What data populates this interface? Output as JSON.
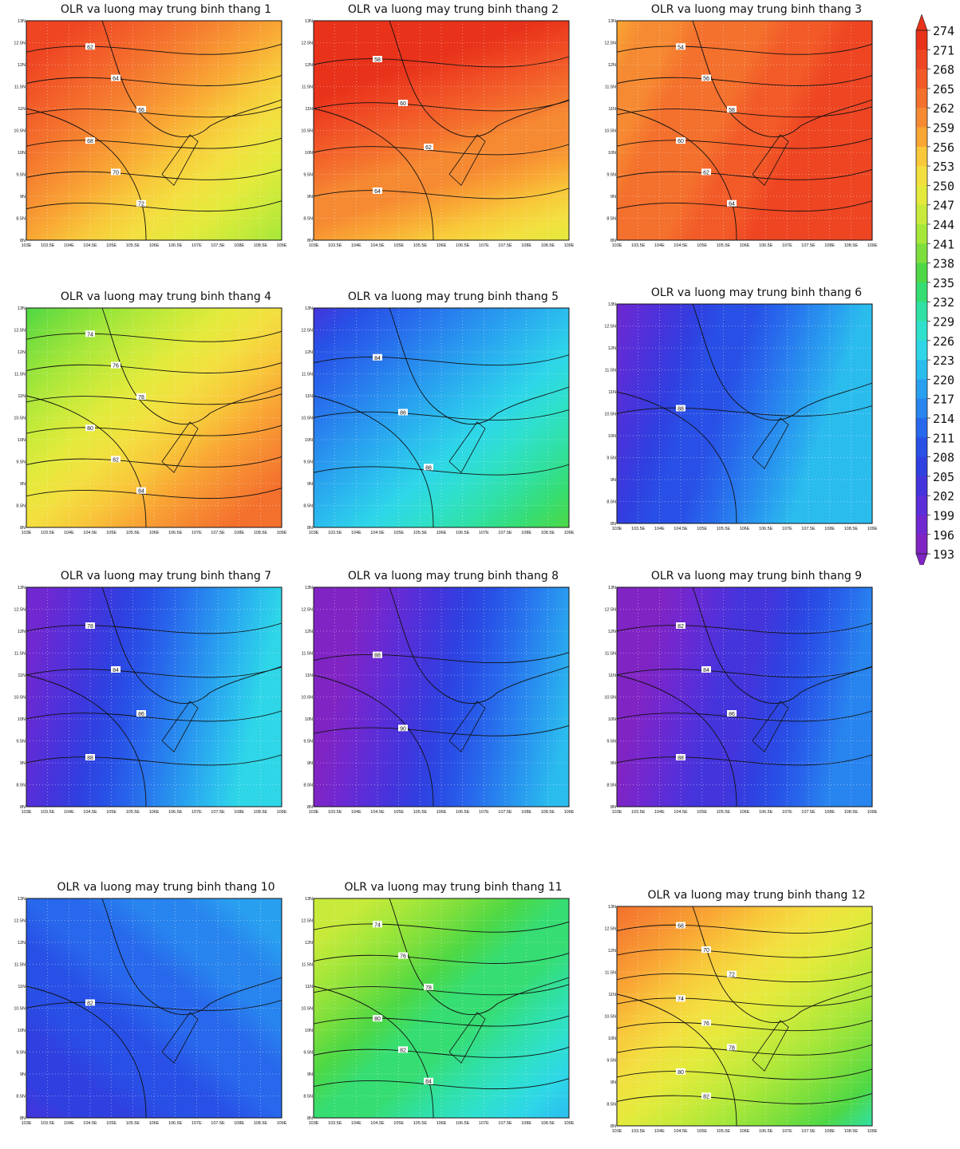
{
  "figure": {
    "colorbar": {
      "ticks": [
        274,
        271,
        268,
        265,
        262,
        259,
        256,
        253,
        250,
        247,
        244,
        241,
        238,
        235,
        232,
        229,
        226,
        223,
        220,
        217,
        214,
        211,
        208,
        205,
        202,
        199,
        196,
        193
      ],
      "colors": [
        "#e8321a",
        "#ee4522",
        "#f25a28",
        "#f4702d",
        "#f68a32",
        "#f9a634",
        "#f8c83a",
        "#f3df40",
        "#e4ea3c",
        "#c8ea3a",
        "#a6e73a",
        "#7edf3c",
        "#4ed845",
        "#36dd72",
        "#30e0a4",
        "#2fe0cc",
        "#2ed6e8",
        "#2bbcee",
        "#29a0ef",
        "#2884ee",
        "#2868ec",
        "#2850e6",
        "#3040e0",
        "#4434dc",
        "#5a2ed8",
        "#7028d0",
        "#8024c4"
      ]
    },
    "axes": {
      "x_ticks": [
        "103E",
        "103.5E",
        "104E",
        "104.5E",
        "105E",
        "105.5E",
        "106E",
        "106.5E",
        "107E",
        "107.5E",
        "108E",
        "108.5E",
        "109E"
      ],
      "y_ticks": [
        "8N",
        "8.5N",
        "9N",
        "9.5N",
        "10N",
        "10.5N",
        "11N",
        "11.5N",
        "12N",
        "12.5N",
        "13N"
      ]
    }
  },
  "chart_data": [
    {
      "type": "heatmap",
      "title": "OLR va luong may trung binh thang 1",
      "olr_range": [
        244,
        271
      ],
      "contour_labels": [
        "62",
        "64",
        "66",
        "68",
        "70",
        "72"
      ]
    },
    {
      "type": "heatmap",
      "title": "OLR va luong may trung binh thang 2",
      "olr_range": [
        250,
        274
      ],
      "contour_labels": [
        "58",
        "60",
        "62",
        "64"
      ]
    },
    {
      "type": "heatmap",
      "title": "OLR va luong may trung binh thang 3",
      "olr_range": [
        259,
        271
      ],
      "contour_labels": [
        "54",
        "56",
        "58",
        "60",
        "62",
        "64"
      ]
    },
    {
      "type": "heatmap",
      "title": "OLR va luong may trung binh thang 4",
      "olr_range": [
        238,
        265
      ],
      "contour_labels": [
        "74",
        "76",
        "78",
        "80",
        "82",
        "84"
      ]
    },
    {
      "type": "heatmap",
      "title": "OLR va luong may trung binh thang 5",
      "olr_range": [
        205,
        238
      ],
      "contour_labels": [
        "84",
        "86",
        "88"
      ]
    },
    {
      "type": "heatmap",
      "title": "OLR va luong may trung binh thang 6",
      "olr_range": [
        199,
        223
      ],
      "contour_labels": [
        "88"
      ]
    },
    {
      "type": "heatmap",
      "title": "OLR va luong may trung binh thang 7",
      "olr_range": [
        199,
        226
      ],
      "contour_labels": [
        "78",
        "84",
        "86",
        "88"
      ]
    },
    {
      "type": "heatmap",
      "title": "OLR va luong may trung binh thang 8",
      "olr_range": [
        193,
        223
      ],
      "contour_labels": [
        "88",
        "90"
      ]
    },
    {
      "type": "heatmap",
      "title": "OLR va luong may trung binh thang 9",
      "olr_range": [
        193,
        217
      ],
      "contour_labels": [
        "82",
        "84",
        "86",
        "88"
      ]
    },
    {
      "type": "heatmap",
      "title": "OLR va luong may trung binh thang 10",
      "olr_range": [
        205,
        220
      ],
      "contour_labels": [
        "82"
      ]
    },
    {
      "type": "heatmap",
      "title": "OLR va luong may trung binh thang 11",
      "olr_range": [
        223,
        247
      ],
      "contour_labels": [
        "74",
        "76",
        "78",
        "80",
        "82",
        "84"
      ]
    },
    {
      "type": "heatmap",
      "title": "OLR va luong may trung binh thang 12",
      "olr_range": [
        232,
        265
      ],
      "contour_labels": [
        "68",
        "70",
        "72",
        "74",
        "76",
        "78",
        "80",
        "82"
      ]
    }
  ]
}
